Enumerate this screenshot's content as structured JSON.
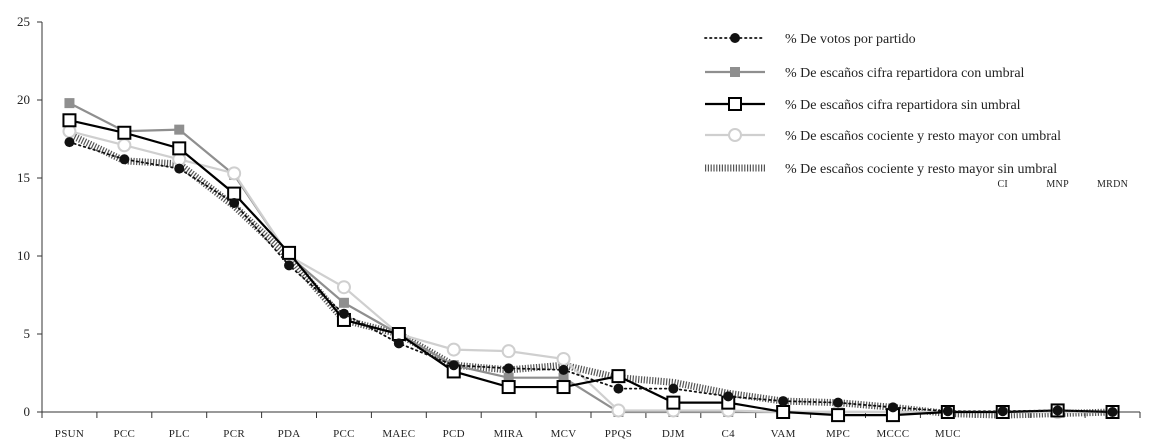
{
  "chart_data": {
    "type": "line",
    "categories": [
      "PSUN",
      "PCC",
      "PLC",
      "PCR",
      "PDA",
      "PCC",
      "MAEC",
      "PCD",
      "MIRA",
      "MCV",
      "PPQS",
      "DJM",
      "C4",
      "VAM",
      "MPC",
      "MCCC",
      "MUC",
      "CI",
      "MNP",
      "MRDN"
    ],
    "upper_labels": [
      "CI",
      "MNP",
      "MRDN"
    ],
    "ylim": [
      0,
      25
    ],
    "yticks": [
      0,
      5,
      10,
      15,
      20,
      25
    ],
    "grid": false,
    "legend_position": "top-right",
    "title": "",
    "xlabel": "",
    "ylabel": "",
    "series": [
      {
        "name": "% De votos por partido",
        "color": "#111111",
        "style": "dotted-circle",
        "values": [
          17.3,
          16.2,
          15.6,
          13.4,
          9.4,
          6.3,
          4.4,
          3.0,
          2.8,
          2.7,
          1.5,
          1.5,
          1.0,
          0.7,
          0.6,
          0.3,
          0.05,
          0.05,
          0.1,
          0.0
        ]
      },
      {
        "name": "% De escaños cifra repartidora con umbral",
        "color": "#8f8f8f",
        "style": "solid-square",
        "values": [
          19.8,
          18.0,
          18.1,
          15.2,
          10.0,
          7.0,
          5.0,
          3.0,
          2.2,
          2.2,
          0.0,
          0.0,
          0.0,
          0.0,
          0.0,
          0.0,
          0.0,
          0.0,
          0.0,
          0.0
        ]
      },
      {
        "name": "% De escaños cifra repartidora sin umbral",
        "color": "#000000",
        "style": "solid-open-square",
        "values": [
          18.7,
          17.9,
          16.9,
          14.0,
          10.2,
          5.9,
          5.0,
          2.6,
          1.6,
          1.6,
          2.3,
          0.6,
          0.6,
          0.0,
          -0.2,
          -0.2,
          0.0,
          0.0,
          0.1,
          0.0
        ]
      },
      {
        "name": "% De escaños cociente y resto mayor con umbral",
        "color": "#cfcfcf",
        "style": "solid-open-circle",
        "values": [
          18.0,
          17.1,
          16.2,
          15.3,
          10.0,
          8.0,
          5.0,
          4.0,
          3.9,
          3.4,
          0.1,
          0.1,
          0.1,
          0.0,
          0.0,
          0.0,
          0.0,
          0.0,
          0.0,
          0.0
        ]
      },
      {
        "name": "% De escaños cociente y resto mayor sin umbral",
        "color": "#555555",
        "style": "hatched-band",
        "values": [
          17.8,
          16.1,
          15.9,
          13.2,
          9.9,
          5.9,
          5.0,
          3.0,
          2.7,
          3.0,
          2.2,
          1.9,
          1.2,
          0.7,
          0.6,
          0.3,
          -0.1,
          -0.2,
          -0.1,
          0.0
        ]
      }
    ]
  }
}
